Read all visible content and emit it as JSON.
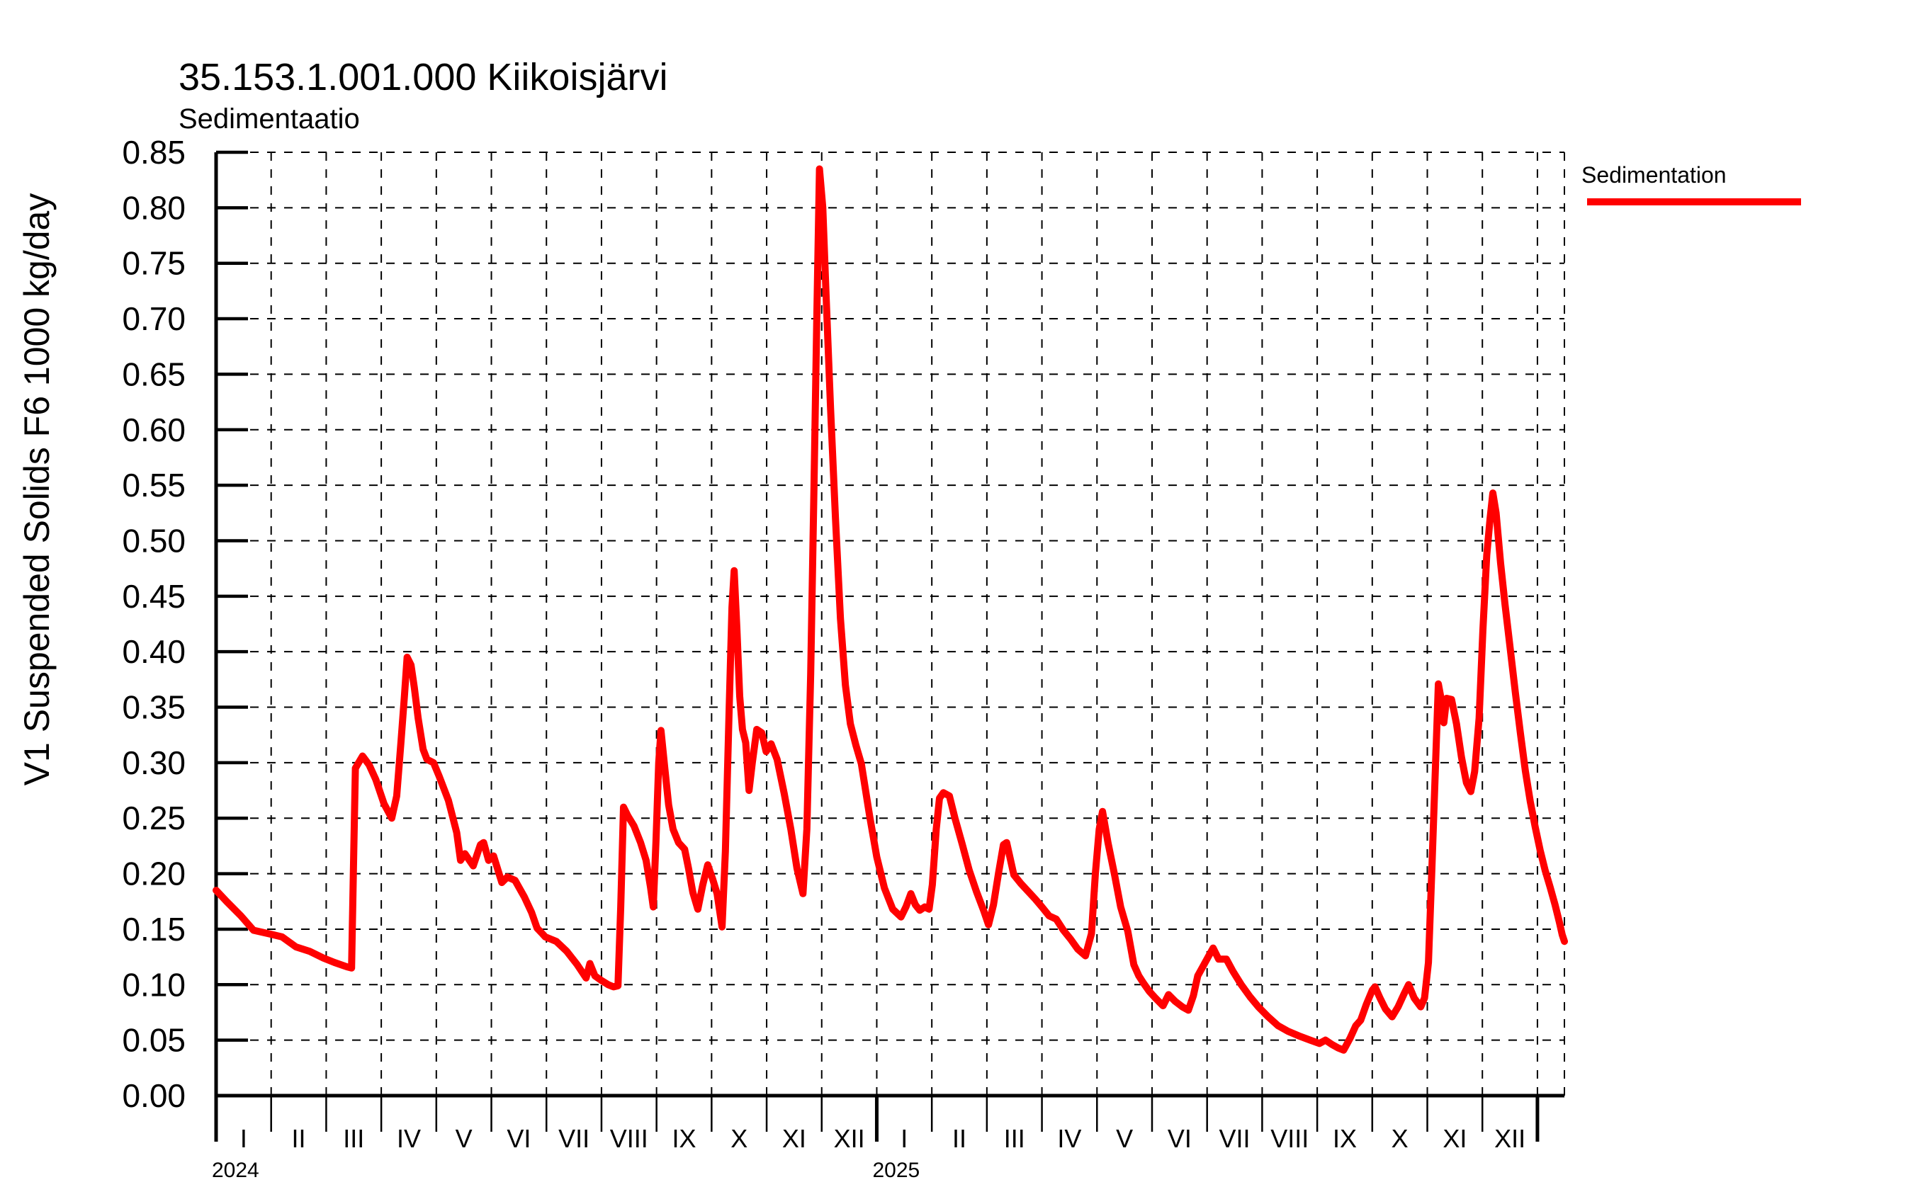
{
  "header": {
    "title": "35.153.1.001.000 Kiikoisjärvi",
    "subtitle": "Sedimentaatio"
  },
  "legend": {
    "label": "Sedimentation",
    "color": "#ff0000"
  },
  "chart_data": {
    "type": "line",
    "title": "35.153.1.001.000 Kiikoisjärvi",
    "subtitle": "Sedimentaatio",
    "xlabel": "",
    "ylabel": "V1 Suspended Solids F6 1000 kg/day",
    "ylim": [
      0,
      0.85
    ],
    "y_tick_step": 0.05,
    "y_tick_labels": [
      "0.00",
      "0.05",
      "0.10",
      "0.15",
      "0.20",
      "0.25",
      "0.30",
      "0.35",
      "0.40",
      "0.45",
      "0.50",
      "0.55",
      "0.60",
      "0.65",
      "0.70",
      "0.75",
      "0.80",
      "0.85"
    ],
    "grid": true,
    "grid_style": "dashed",
    "legend_position": "top-right",
    "x_axis": {
      "unit": "months since 2024-01-01",
      "x_end_month": 24.49,
      "month_labels": [
        "I",
        "II",
        "III",
        "IV",
        "V",
        "VI",
        "VII",
        "VIII",
        "IX",
        "X",
        "XI",
        "XII",
        "I",
        "II",
        "III",
        "IV",
        "V",
        "VI",
        "VII",
        "VIII",
        "IX",
        "X",
        "XI",
        "XII"
      ],
      "year_labels": [
        {
          "text": "2024",
          "month_index": 0
        },
        {
          "text": "2025",
          "month_index": 12
        }
      ],
      "year_tick_months": [
        0,
        12,
        24
      ]
    },
    "series": [
      {
        "name": "Sedimentation",
        "color": "#ff0000",
        "line_width": 10,
        "points": [
          [
            0.0,
            0.185
          ],
          [
            0.19,
            0.175
          ],
          [
            0.45,
            0.162
          ],
          [
            0.68,
            0.149
          ],
          [
            0.95,
            0.146
          ],
          [
            1.2,
            0.143
          ],
          [
            1.45,
            0.134
          ],
          [
            1.7,
            0.13
          ],
          [
            1.95,
            0.124
          ],
          [
            2.15,
            0.12
          ],
          [
            2.38,
            0.116
          ],
          [
            2.46,
            0.115
          ],
          [
            2.5,
            0.22
          ],
          [
            2.53,
            0.295
          ],
          [
            2.66,
            0.306
          ],
          [
            2.78,
            0.298
          ],
          [
            2.9,
            0.285
          ],
          [
            3.05,
            0.263
          ],
          [
            3.19,
            0.25
          ],
          [
            3.28,
            0.27
          ],
          [
            3.36,
            0.32
          ],
          [
            3.42,
            0.36
          ],
          [
            3.47,
            0.395
          ],
          [
            3.54,
            0.388
          ],
          [
            3.6,
            0.368
          ],
          [
            3.67,
            0.34
          ],
          [
            3.76,
            0.312
          ],
          [
            3.83,
            0.303
          ],
          [
            3.95,
            0.3
          ],
          [
            4.05,
            0.288
          ],
          [
            4.22,
            0.266
          ],
          [
            4.37,
            0.237
          ],
          [
            4.44,
            0.212
          ],
          [
            4.52,
            0.218
          ],
          [
            4.67,
            0.207
          ],
          [
            4.8,
            0.226
          ],
          [
            4.86,
            0.228
          ],
          [
            4.95,
            0.212
          ],
          [
            5.04,
            0.216
          ],
          [
            5.19,
            0.192
          ],
          [
            5.29,
            0.197
          ],
          [
            5.43,
            0.194
          ],
          [
            5.6,
            0.179
          ],
          [
            5.73,
            0.165
          ],
          [
            5.83,
            0.151
          ],
          [
            5.98,
            0.143
          ],
          [
            6.18,
            0.139
          ],
          [
            6.37,
            0.13
          ],
          [
            6.56,
            0.118
          ],
          [
            6.72,
            0.106
          ],
          [
            6.79,
            0.119
          ],
          [
            6.88,
            0.108
          ],
          [
            6.99,
            0.104
          ],
          [
            7.12,
            0.1
          ],
          [
            7.22,
            0.098
          ],
          [
            7.3,
            0.099
          ],
          [
            7.35,
            0.17
          ],
          [
            7.4,
            0.26
          ],
          [
            7.48,
            0.252
          ],
          [
            7.59,
            0.243
          ],
          [
            7.71,
            0.228
          ],
          [
            7.81,
            0.212
          ],
          [
            7.89,
            0.188
          ],
          [
            7.94,
            0.17
          ],
          [
            7.99,
            0.23
          ],
          [
            8.04,
            0.3
          ],
          [
            8.08,
            0.329
          ],
          [
            8.15,
            0.295
          ],
          [
            8.22,
            0.262
          ],
          [
            8.3,
            0.24
          ],
          [
            8.4,
            0.228
          ],
          [
            8.51,
            0.222
          ],
          [
            8.58,
            0.205
          ],
          [
            8.66,
            0.183
          ],
          [
            8.75,
            0.168
          ],
          [
            8.84,
            0.19
          ],
          [
            8.93,
            0.208
          ],
          [
            9.02,
            0.195
          ],
          [
            9.1,
            0.182
          ],
          [
            9.19,
            0.152
          ],
          [
            9.25,
            0.22
          ],
          [
            9.32,
            0.35
          ],
          [
            9.37,
            0.44
          ],
          [
            9.41,
            0.473
          ],
          [
            9.46,
            0.42
          ],
          [
            9.51,
            0.36
          ],
          [
            9.56,
            0.33
          ],
          [
            9.62,
            0.318
          ],
          [
            9.68,
            0.275
          ],
          [
            9.74,
            0.3
          ],
          [
            9.82,
            0.33
          ],
          [
            9.91,
            0.327
          ],
          [
            9.99,
            0.31
          ],
          [
            10.08,
            0.317
          ],
          [
            10.19,
            0.303
          ],
          [
            10.32,
            0.272
          ],
          [
            10.44,
            0.24
          ],
          [
            10.55,
            0.205
          ],
          [
            10.66,
            0.182
          ],
          [
            10.73,
            0.24
          ],
          [
            10.8,
            0.38
          ],
          [
            10.86,
            0.55
          ],
          [
            10.91,
            0.7
          ],
          [
            10.96,
            0.835
          ],
          [
            11.02,
            0.8
          ],
          [
            11.08,
            0.72
          ],
          [
            11.16,
            0.62
          ],
          [
            11.25,
            0.52
          ],
          [
            11.34,
            0.43
          ],
          [
            11.43,
            0.37
          ],
          [
            11.52,
            0.335
          ],
          [
            11.62,
            0.316
          ],
          [
            11.72,
            0.299
          ],
          [
            11.87,
            0.252
          ],
          [
            12.0,
            0.215
          ],
          [
            12.14,
            0.187
          ],
          [
            12.29,
            0.168
          ],
          [
            12.44,
            0.161
          ],
          [
            12.53,
            0.17
          ],
          [
            12.62,
            0.182
          ],
          [
            12.7,
            0.172
          ],
          [
            12.78,
            0.167
          ],
          [
            12.87,
            0.17
          ],
          [
            12.95,
            0.168
          ],
          [
            13.01,
            0.19
          ],
          [
            13.08,
            0.24
          ],
          [
            13.14,
            0.268
          ],
          [
            13.21,
            0.273
          ],
          [
            13.32,
            0.27
          ],
          [
            13.42,
            0.25
          ],
          [
            13.55,
            0.227
          ],
          [
            13.68,
            0.203
          ],
          [
            13.81,
            0.184
          ],
          [
            13.94,
            0.167
          ],
          [
            14.03,
            0.154
          ],
          [
            14.12,
            0.172
          ],
          [
            14.21,
            0.2
          ],
          [
            14.3,
            0.226
          ],
          [
            14.36,
            0.228
          ],
          [
            14.49,
            0.199
          ],
          [
            14.62,
            0.191
          ],
          [
            14.75,
            0.184
          ],
          [
            14.88,
            0.177
          ],
          [
            15.0,
            0.17
          ],
          [
            15.13,
            0.162
          ],
          [
            15.26,
            0.159
          ],
          [
            15.39,
            0.149
          ],
          [
            15.52,
            0.141
          ],
          [
            15.65,
            0.132
          ],
          [
            15.79,
            0.126
          ],
          [
            15.9,
            0.146
          ],
          [
            15.97,
            0.2
          ],
          [
            16.04,
            0.24
          ],
          [
            16.1,
            0.256
          ],
          [
            16.2,
            0.228
          ],
          [
            16.32,
            0.199
          ],
          [
            16.43,
            0.17
          ],
          [
            16.56,
            0.148
          ],
          [
            16.67,
            0.118
          ],
          [
            16.76,
            0.108
          ],
          [
            16.85,
            0.101
          ],
          [
            16.95,
            0.094
          ],
          [
            17.06,
            0.088
          ],
          [
            17.2,
            0.081
          ],
          [
            17.3,
            0.091
          ],
          [
            17.42,
            0.085
          ],
          [
            17.55,
            0.08
          ],
          [
            17.66,
            0.077
          ],
          [
            17.75,
            0.09
          ],
          [
            17.83,
            0.108
          ],
          [
            17.92,
            0.116
          ],
          [
            18.02,
            0.125
          ],
          [
            18.11,
            0.133
          ],
          [
            18.21,
            0.123
          ],
          [
            18.35,
            0.123
          ],
          [
            18.47,
            0.112
          ],
          [
            18.62,
            0.1
          ],
          [
            18.78,
            0.089
          ],
          [
            18.93,
            0.08
          ],
          [
            19.11,
            0.071
          ],
          [
            19.29,
            0.063
          ],
          [
            19.47,
            0.058
          ],
          [
            19.66,
            0.054
          ],
          [
            19.87,
            0.05
          ],
          [
            20.04,
            0.047
          ],
          [
            20.15,
            0.05
          ],
          [
            20.27,
            0.046
          ],
          [
            20.38,
            0.043
          ],
          [
            20.48,
            0.041
          ],
          [
            20.6,
            0.052
          ],
          [
            20.7,
            0.063
          ],
          [
            20.79,
            0.068
          ],
          [
            20.89,
            0.082
          ],
          [
            21.0,
            0.095
          ],
          [
            21.05,
            0.098
          ],
          [
            21.14,
            0.088
          ],
          [
            21.24,
            0.078
          ],
          [
            21.36,
            0.071
          ],
          [
            21.47,
            0.08
          ],
          [
            21.58,
            0.092
          ],
          [
            21.66,
            0.1
          ],
          [
            21.76,
            0.088
          ],
          [
            21.88,
            0.08
          ],
          [
            21.95,
            0.088
          ],
          [
            22.02,
            0.12
          ],
          [
            22.08,
            0.2
          ],
          [
            22.15,
            0.3
          ],
          [
            22.2,
            0.371
          ],
          [
            22.26,
            0.355
          ],
          [
            22.3,
            0.336
          ],
          [
            22.35,
            0.358
          ],
          [
            22.44,
            0.357
          ],
          [
            22.53,
            0.335
          ],
          [
            22.62,
            0.305
          ],
          [
            22.71,
            0.282
          ],
          [
            22.79,
            0.274
          ],
          [
            22.86,
            0.292
          ],
          [
            22.94,
            0.34
          ],
          [
            23.01,
            0.42
          ],
          [
            23.08,
            0.487
          ],
          [
            23.14,
            0.52
          ],
          [
            23.19,
            0.543
          ],
          [
            23.25,
            0.525
          ],
          [
            23.33,
            0.48
          ],
          [
            23.41,
            0.443
          ],
          [
            23.5,
            0.405
          ],
          [
            23.6,
            0.363
          ],
          [
            23.69,
            0.327
          ],
          [
            23.78,
            0.293
          ],
          [
            23.87,
            0.265
          ],
          [
            23.96,
            0.242
          ],
          [
            24.05,
            0.221
          ],
          [
            24.14,
            0.203
          ],
          [
            24.23,
            0.188
          ],
          [
            24.32,
            0.172
          ],
          [
            24.4,
            0.156
          ],
          [
            24.45,
            0.145
          ],
          [
            24.49,
            0.139
          ]
        ]
      }
    ]
  }
}
